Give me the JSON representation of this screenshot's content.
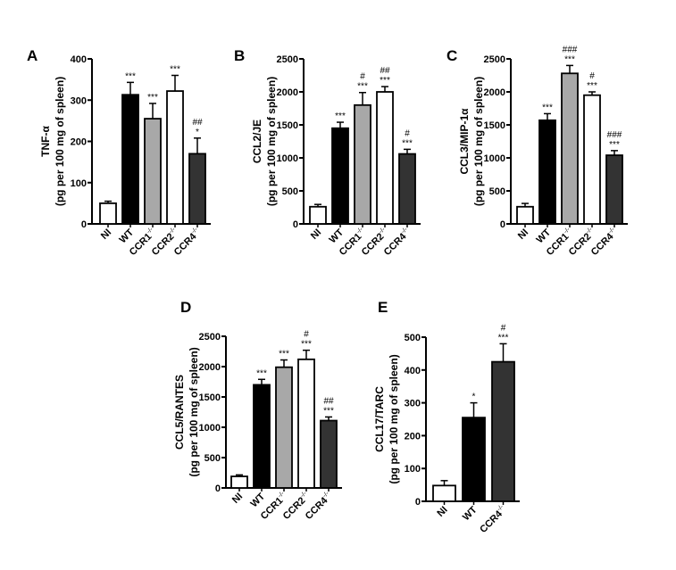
{
  "chart_data": [
    {
      "type": "bar",
      "panel": "A",
      "ylabel": [
        "TNF-α",
        "(pg per 100 mg of spleen)"
      ],
      "ylim": [
        0,
        400
      ],
      "yticks": [
        0,
        100,
        200,
        300,
        400
      ],
      "categories": [
        {
          "name": "NI",
          "sup": ""
        },
        {
          "name": "WT",
          "sup": ""
        },
        {
          "name": "CCR1",
          "sup": "-/-"
        },
        {
          "name": "CCR2",
          "sup": "-/-"
        },
        {
          "name": "CCR4",
          "sup": "-/-"
        }
      ],
      "values": [
        50,
        313,
        255,
        322,
        170
      ],
      "errors": [
        5,
        30,
        37,
        38,
        38
      ],
      "colors": [
        "#ffffff",
        "#000000",
        "#a8a8a8",
        "#ffffff",
        "#333333"
      ],
      "annotations": [
        [],
        [
          "***"
        ],
        [
          "***"
        ],
        [
          "***"
        ],
        [
          "##",
          "*"
        ]
      ]
    },
    {
      "type": "bar",
      "panel": "B",
      "ylabel": [
        "CCL2/JE",
        "(pg per 100 mg of spleen)"
      ],
      "ylim": [
        0,
        2500
      ],
      "yticks": [
        0,
        500,
        1000,
        1500,
        2000,
        2500
      ],
      "categories": [
        {
          "name": "NI",
          "sup": ""
        },
        {
          "name": "WT",
          "sup": ""
        },
        {
          "name": "CCR1",
          "sup": "-/-"
        },
        {
          "name": "CCR2",
          "sup": "-/-"
        },
        {
          "name": "CCR4",
          "sup": "-/-"
        }
      ],
      "values": [
        260,
        1450,
        1800,
        2000,
        1060
      ],
      "errors": [
        35,
        90,
        190,
        80,
        70
      ],
      "colors": [
        "#ffffff",
        "#000000",
        "#a8a8a8",
        "#ffffff",
        "#333333"
      ],
      "annotations": [
        [],
        [
          "***"
        ],
        [
          "#",
          "***"
        ],
        [
          "##",
          "***"
        ],
        [
          "#",
          "***"
        ]
      ]
    },
    {
      "type": "bar",
      "panel": "C",
      "ylabel": [
        "CCL3/MIP-1α",
        "(pg per 100 mg of spleen)"
      ],
      "ylim": [
        0,
        2500
      ],
      "yticks": [
        0,
        500,
        1000,
        1500,
        2000,
        2500
      ],
      "categories": [
        {
          "name": "NI",
          "sup": ""
        },
        {
          "name": "WT",
          "sup": ""
        },
        {
          "name": "CCR1",
          "sup": "-/-"
        },
        {
          "name": "CCR2",
          "sup": "-/-"
        },
        {
          "name": "CCR4",
          "sup": "-/-"
        }
      ],
      "values": [
        260,
        1570,
        2280,
        1950,
        1040
      ],
      "errors": [
        50,
        100,
        120,
        50,
        70
      ],
      "colors": [
        "#ffffff",
        "#000000",
        "#a8a8a8",
        "#ffffff",
        "#333333"
      ],
      "annotations": [
        [],
        [
          "***"
        ],
        [
          "###",
          "***"
        ],
        [
          "#",
          "***"
        ],
        [
          "###",
          "***"
        ]
      ]
    },
    {
      "type": "bar",
      "panel": "D",
      "ylabel": [
        "CCL5/RANTES",
        "(pg per 100 mg of spleen)"
      ],
      "ylim": [
        0,
        2500
      ],
      "yticks": [
        0,
        500,
        1000,
        1500,
        2000,
        2500
      ],
      "categories": [
        {
          "name": "NI",
          "sup": ""
        },
        {
          "name": "WT",
          "sup": ""
        },
        {
          "name": "CCR1",
          "sup": "-/-"
        },
        {
          "name": "CCR2",
          "sup": "-/-"
        },
        {
          "name": "CCR4",
          "sup": "-/-"
        }
      ],
      "values": [
        190,
        1700,
        1990,
        2120,
        1110
      ],
      "errors": [
        25,
        90,
        120,
        150,
        60
      ],
      "colors": [
        "#ffffff",
        "#000000",
        "#a8a8a8",
        "#ffffff",
        "#333333"
      ],
      "annotations": [
        [],
        [
          "***"
        ],
        [
          "***"
        ],
        [
          "#",
          "***"
        ],
        [
          "##",
          "***"
        ]
      ]
    },
    {
      "type": "bar",
      "panel": "E",
      "ylabel": [
        "CCL17/TARC",
        "(pg per 100 mg of spleen)"
      ],
      "ylim": [
        0,
        500
      ],
      "yticks": [
        0,
        100,
        200,
        300,
        400,
        500
      ],
      "categories": [
        {
          "name": "NI",
          "sup": ""
        },
        {
          "name": "WT",
          "sup": ""
        },
        {
          "name": "CCR4",
          "sup": "-/-"
        }
      ],
      "values": [
        48,
        255,
        425
      ],
      "errors": [
        15,
        45,
        55
      ],
      "colors": [
        "#ffffff",
        "#000000",
        "#333333"
      ],
      "annotations": [
        [],
        [
          "*"
        ],
        [
          "#",
          "***"
        ]
      ]
    }
  ]
}
